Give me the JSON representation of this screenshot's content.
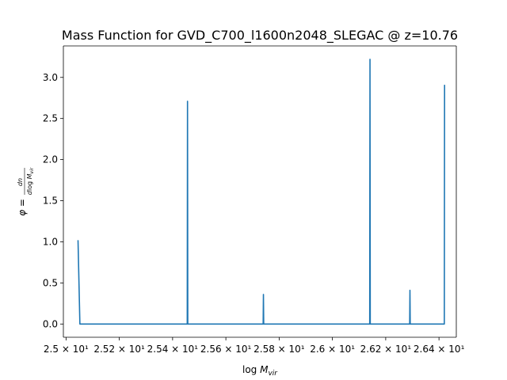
{
  "chart_data": {
    "type": "line",
    "title": "Mass Function for GVD_C700_l1600n2048_SLEGAC @ z=10.76",
    "xlabel": "log M_vir",
    "ylabel": "φ = dn / dlog M_vir",
    "xlim": [
      24.99,
      26.465
    ],
    "ylim": [
      -0.161,
      3.383
    ],
    "grid": false,
    "series": [
      {
        "color": "#1f77b4",
        "x": [
          25.045,
          25.052,
          25.455,
          25.456,
          25.457,
          25.74,
          25.741,
          25.742,
          26.14,
          26.141,
          26.142,
          26.29,
          26.291,
          26.292,
          26.42,
          26.421
        ],
        "y": [
          1.02,
          0.0,
          0.0,
          2.71,
          0.0,
          0.0,
          0.36,
          0.0,
          0.0,
          3.22,
          0.0,
          0.0,
          0.41,
          0.0,
          0.0,
          2.91
        ]
      }
    ],
    "xticks": [
      {
        "value": 25.0,
        "label": "2.5 × 10¹"
      },
      {
        "value": 25.2,
        "label": "2.52 × 10¹"
      },
      {
        "value": 25.4,
        "label": "2.54 × 10¹"
      },
      {
        "value": 25.6,
        "label": "2.56 × 10¹"
      },
      {
        "value": 25.8,
        "label": "2.58 × 10¹"
      },
      {
        "value": 26.0,
        "label": "2.6 × 10¹"
      },
      {
        "value": 26.2,
        "label": "2.62 × 10¹"
      },
      {
        "value": 26.4,
        "label": "2.64 × 10¹"
      }
    ],
    "yticks": [
      {
        "value": 0.0,
        "label": "0.0"
      },
      {
        "value": 0.5,
        "label": "0.5"
      },
      {
        "value": 1.0,
        "label": "1.0"
      },
      {
        "value": 1.5,
        "label": "1.5"
      },
      {
        "value": 2.0,
        "label": "2.0"
      },
      {
        "value": 2.5,
        "label": "2.5"
      },
      {
        "value": 3.0,
        "label": "3.0"
      }
    ]
  }
}
